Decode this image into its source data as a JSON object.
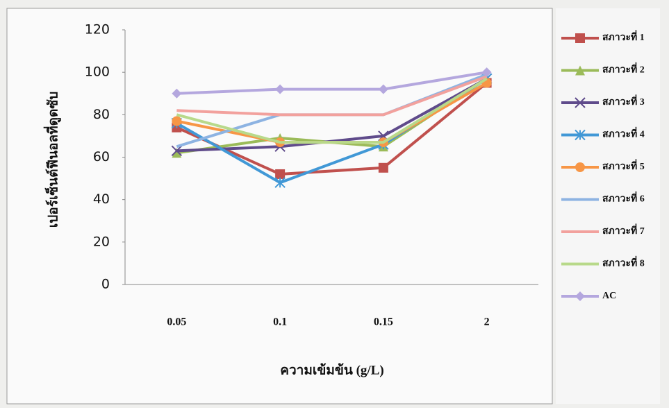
{
  "chart_data": {
    "type": "line",
    "y_label": "เปอร์เซ็นต์ฟีนอลที่ดูดซับ",
    "x_label": "ความเข้มข้น (g/L)",
    "categories": [
      "0.05",
      "0.1",
      "0.15",
      "2"
    ],
    "ylim": [
      0,
      120
    ],
    "yticks": [
      0,
      20,
      40,
      60,
      80,
      100,
      120
    ],
    "grid": false,
    "legend": "right",
    "series": [
      {
        "name": "สภาวะที่ 1",
        "color": "#c0504d",
        "marker": "square",
        "values": [
          74,
          52,
          55,
          95
        ]
      },
      {
        "name": "สภาวะที่ 2",
        "color": "#9bbb59",
        "marker": "triangle",
        "values": [
          62,
          69,
          65,
          97
        ]
      },
      {
        "name": "สภาวะที่ 3",
        "color": "#5f4b8b",
        "marker": "x",
        "values": [
          63,
          65,
          70,
          97
        ]
      },
      {
        "name": "สภาวะที่ 4",
        "color": "#4198d6",
        "marker": "star",
        "values": [
          76,
          48,
          66,
          97
        ]
      },
      {
        "name": "สภาวะที่ 5",
        "color": "#f79646",
        "marker": "circle",
        "values": [
          77,
          67,
          67,
          95
        ]
      },
      {
        "name": "สภาวะที่ 6",
        "color": "#8db3e2",
        "marker": "none",
        "values": [
          65,
          80,
          80,
          99
        ]
      },
      {
        "name": "สภาวะที่ 7",
        "color": "#f2a19d",
        "marker": "none",
        "values": [
          82,
          80,
          80,
          98
        ]
      },
      {
        "name": "สภาวะที่ 8",
        "color": "#b8d98a",
        "marker": "none",
        "values": [
          80,
          67,
          67,
          97
        ]
      },
      {
        "name": "AC",
        "color": "#b4a7de",
        "marker": "diamond",
        "values": [
          90,
          92,
          92,
          100
        ]
      }
    ]
  }
}
